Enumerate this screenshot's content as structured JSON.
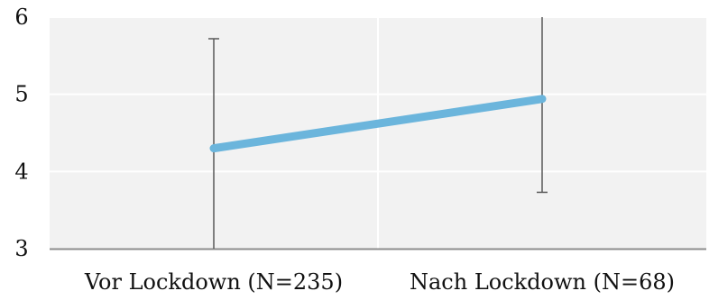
{
  "chart_data": {
    "type": "line",
    "title": "",
    "xlabel": "",
    "ylabel": "",
    "categories": [
      "Vor Lockdown (N=235)",
      "Nach Lockdown (N=68)"
    ],
    "series": [
      {
        "values": [
          4.3,
          4.94
        ],
        "error_low": [
          3.0,
          3.73
        ],
        "error_high": [
          5.72,
          6.0
        ],
        "color": "#6BB5DC"
      }
    ],
    "ylim": [
      3,
      6
    ],
    "yticks": [
      "3",
      "4",
      "5",
      "6"
    ],
    "grid": true,
    "legend": "none",
    "colors": {
      "plot_background": "#F2F2F2",
      "gridline": "#FFFFFF",
      "x_axis_line": "#8C8C8C",
      "error_bar": "#595959"
    }
  }
}
